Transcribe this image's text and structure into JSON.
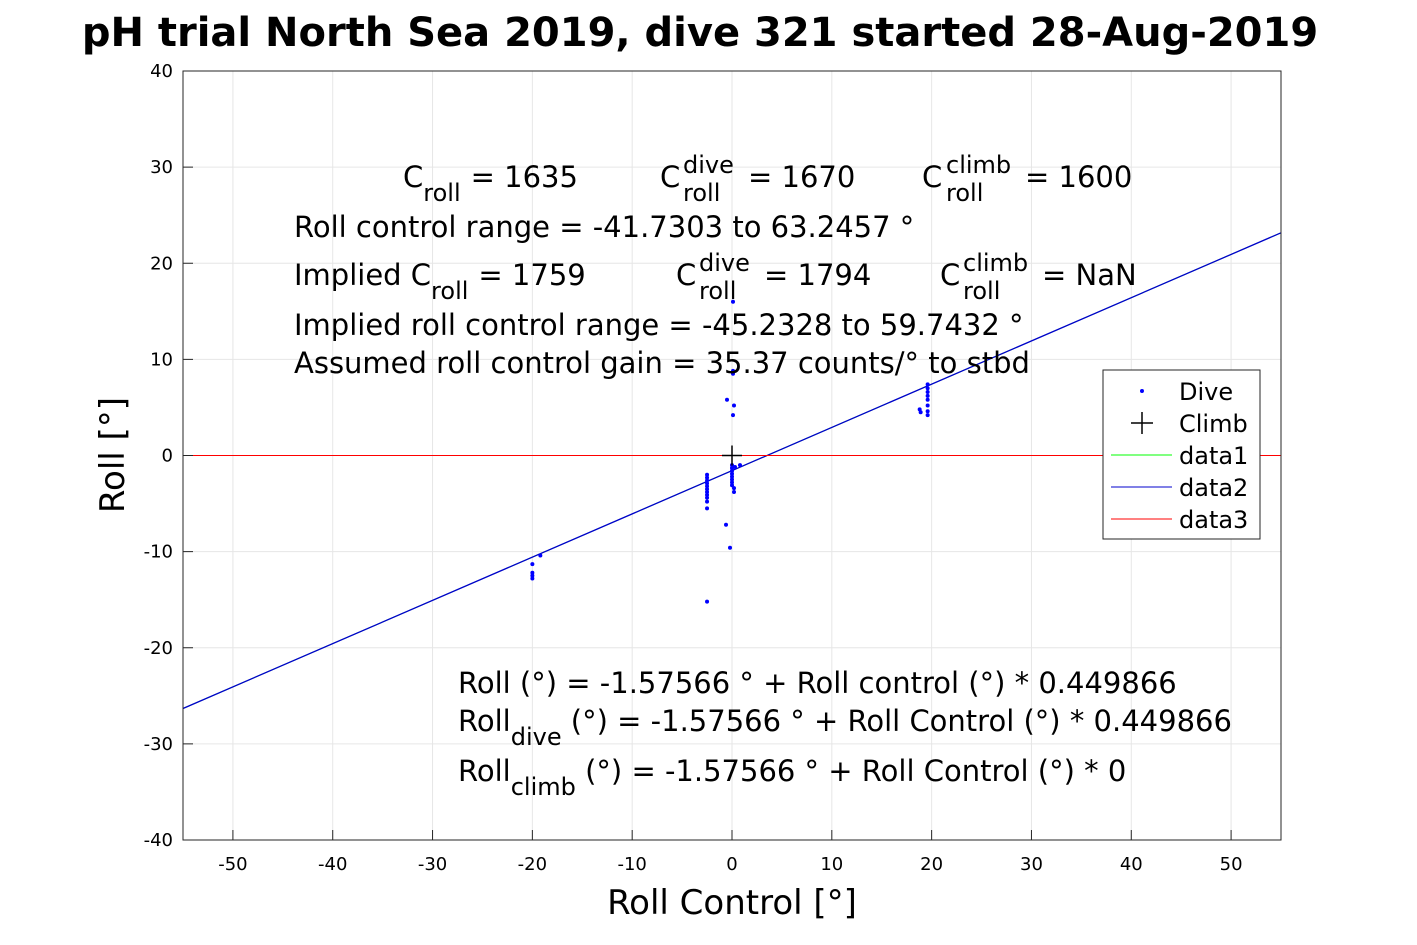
{
  "chart_data": {
    "type": "scatter",
    "title": "pH trial North Sea 2019, dive 321 started 28-Aug-2019",
    "xlabel": "Roll Control [°]",
    "ylabel": "Roll [°]",
    "xlim": [
      -55,
      55
    ],
    "ylim": [
      -40,
      40
    ],
    "xticks": [
      -50,
      -40,
      -30,
      -20,
      -10,
      0,
      10,
      20,
      30,
      40,
      50
    ],
    "yticks": [
      -40,
      -30,
      -20,
      -10,
      0,
      10,
      20,
      30,
      40
    ],
    "grid": true,
    "legend_placement": "right",
    "legend": [
      "Dive",
      "Climb",
      "data1",
      "data2",
      "data3"
    ],
    "colors": {
      "dive": "#0000ff",
      "climb": "#000000",
      "data1": "#00ff00",
      "data2": "#0000cc",
      "data3": "#ff0000"
    },
    "dive_points": [
      [
        -2.5,
        -2.0
      ],
      [
        -2.5,
        -2.3
      ],
      [
        -2.5,
        -2.6
      ],
      [
        -2.5,
        -2.9
      ],
      [
        -2.5,
        -3.2
      ],
      [
        -2.5,
        -3.5
      ],
      [
        -2.5,
        -3.8
      ],
      [
        -2.5,
        -4.1
      ],
      [
        -2.5,
        -4.4
      ],
      [
        -2.5,
        -4.8
      ],
      [
        -2.5,
        -5.5
      ],
      [
        -2.5,
        -15.2
      ],
      [
        0,
        -1.0
      ],
      [
        0,
        -1.3
      ],
      [
        0,
        -1.6
      ],
      [
        0,
        -1.9
      ],
      [
        0,
        -2.2
      ],
      [
        0,
        -2.5
      ],
      [
        0,
        -2.8
      ],
      [
        0,
        -3.1
      ],
      [
        0.2,
        -3.4
      ],
      [
        0.2,
        -3.8
      ],
      [
        0.3,
        -1.2
      ],
      [
        0.8,
        -1.0
      ],
      [
        0.1,
        8.5
      ],
      [
        0.1,
        8.8
      ],
      [
        0.2,
        5.2
      ],
      [
        0.1,
        4.2
      ],
      [
        0.1,
        16.0
      ],
      [
        -0.2,
        -9.6
      ],
      [
        -0.6,
        -7.2
      ],
      [
        -0.5,
        5.8
      ],
      [
        -20,
        -11.3
      ],
      [
        -20,
        -12.2
      ],
      [
        -20,
        -12.5
      ],
      [
        -20,
        -12.8
      ],
      [
        -19.2,
        -10.4
      ],
      [
        19.6,
        7.4
      ],
      [
        19.6,
        7.0
      ],
      [
        19.6,
        6.6
      ],
      [
        19.6,
        6.2
      ],
      [
        19.6,
        5.8
      ],
      [
        19.6,
        5.2
      ],
      [
        19.6,
        4.6
      ],
      [
        19.6,
        4.2
      ],
      [
        18.8,
        4.8
      ],
      [
        18.9,
        4.5
      ]
    ],
    "climb_points": [
      [
        0,
        0
      ]
    ],
    "fit_line": {
      "intercept": -1.57566,
      "slope": 0.449866
    },
    "zero_line": 0,
    "annotations": {
      "c_roll_label": "C",
      "c_roll_sub": "roll",
      "c_roll_val": "= 1635",
      "c_dive_sup": "dive",
      "c_dive_val": "= 1670",
      "c_climb_sup": "climb",
      "c_climb_val": "= 1600",
      "range": "Roll control range = -41.7303 to 63.2457 °",
      "implied_prefix": "Implied C",
      "implied_val": "= 1759",
      "implied_dive_val": "= 1794",
      "implied_climb_val": "=  NaN",
      "implied_range": "Implied roll control range = -45.2328 to 59.7432 °",
      "gain": "Assumed roll control gain = 35.37 counts/° to stbd",
      "eq1": "Roll (°) = -1.57566 ° + Roll control (°) * 0.449866",
      "eq2_a": "Roll",
      "eq2_sub": "dive",
      "eq2_b": " (°) = -1.57566 ° + Roll Control (°) * 0.449866",
      "eq3_a": "Roll",
      "eq3_sub": "climb",
      "eq3_b": " (°) = -1.57566 ° + Roll Control (°) * 0"
    }
  }
}
